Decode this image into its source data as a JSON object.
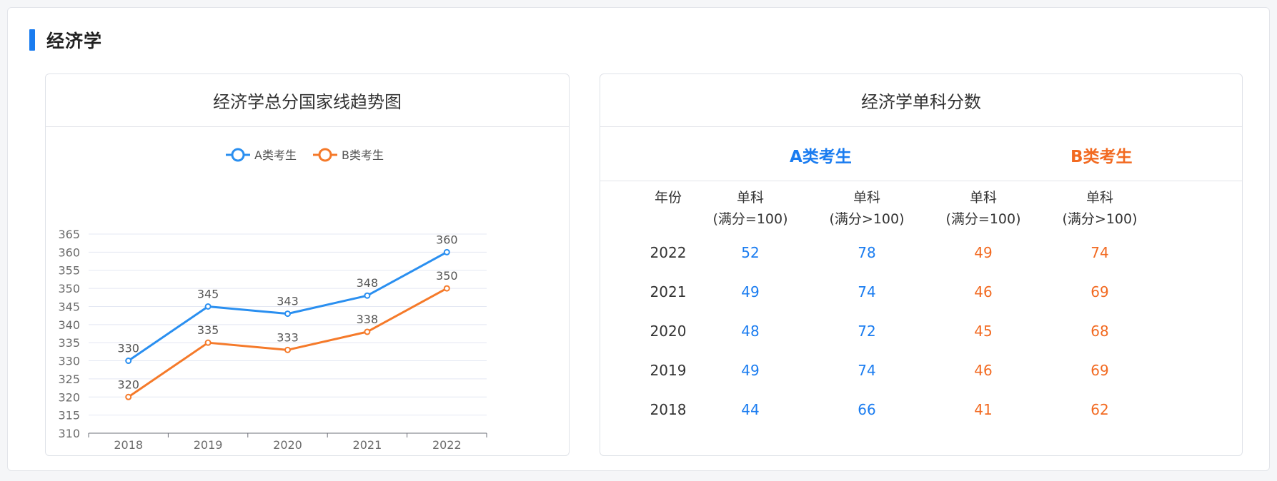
{
  "section": {
    "title": "经济学"
  },
  "chart": {
    "card_title": "经济学总分国家线趋势图"
  },
  "chart_data": {
    "type": "line",
    "x": [
      "2018",
      "2019",
      "2020",
      "2021",
      "2022"
    ],
    "series": [
      {
        "name": "A类考生",
        "values": [
          330,
          345,
          343,
          348,
          360
        ],
        "color": "#2a8ff0"
      },
      {
        "name": "B类考生",
        "values": [
          320,
          335,
          333,
          338,
          350
        ],
        "color": "#f57a2a"
      }
    ],
    "ylim": [
      310,
      365
    ],
    "yticks": [
      310,
      315,
      320,
      325,
      330,
      335,
      340,
      345,
      350,
      355,
      360,
      365
    ],
    "legend_position": "top-center",
    "grid": true,
    "data_labels": true
  },
  "table": {
    "card_title": "经济学单科分数",
    "group_a": "A类考生",
    "group_b": "B类考生",
    "year_header": "年份",
    "col_headers": [
      {
        "top": "单科",
        "bottom": "(满分=100)"
      },
      {
        "top": "单科",
        "bottom": "(满分>100)"
      },
      {
        "top": "单科",
        "bottom": "(满分=100)"
      },
      {
        "top": "单科",
        "bottom": "(满分>100)"
      }
    ],
    "rows": [
      {
        "year": "2022",
        "a1": "52",
        "a2": "78",
        "b1": "49",
        "b2": "74"
      },
      {
        "year": "2021",
        "a1": "49",
        "a2": "74",
        "b1": "46",
        "b2": "69"
      },
      {
        "year": "2020",
        "a1": "48",
        "a2": "72",
        "b1": "45",
        "b2": "68"
      },
      {
        "year": "2019",
        "a1": "49",
        "a2": "74",
        "b1": "46",
        "b2": "69"
      },
      {
        "year": "2018",
        "a1": "44",
        "a2": "66",
        "b1": "41",
        "b2": "62"
      }
    ]
  }
}
